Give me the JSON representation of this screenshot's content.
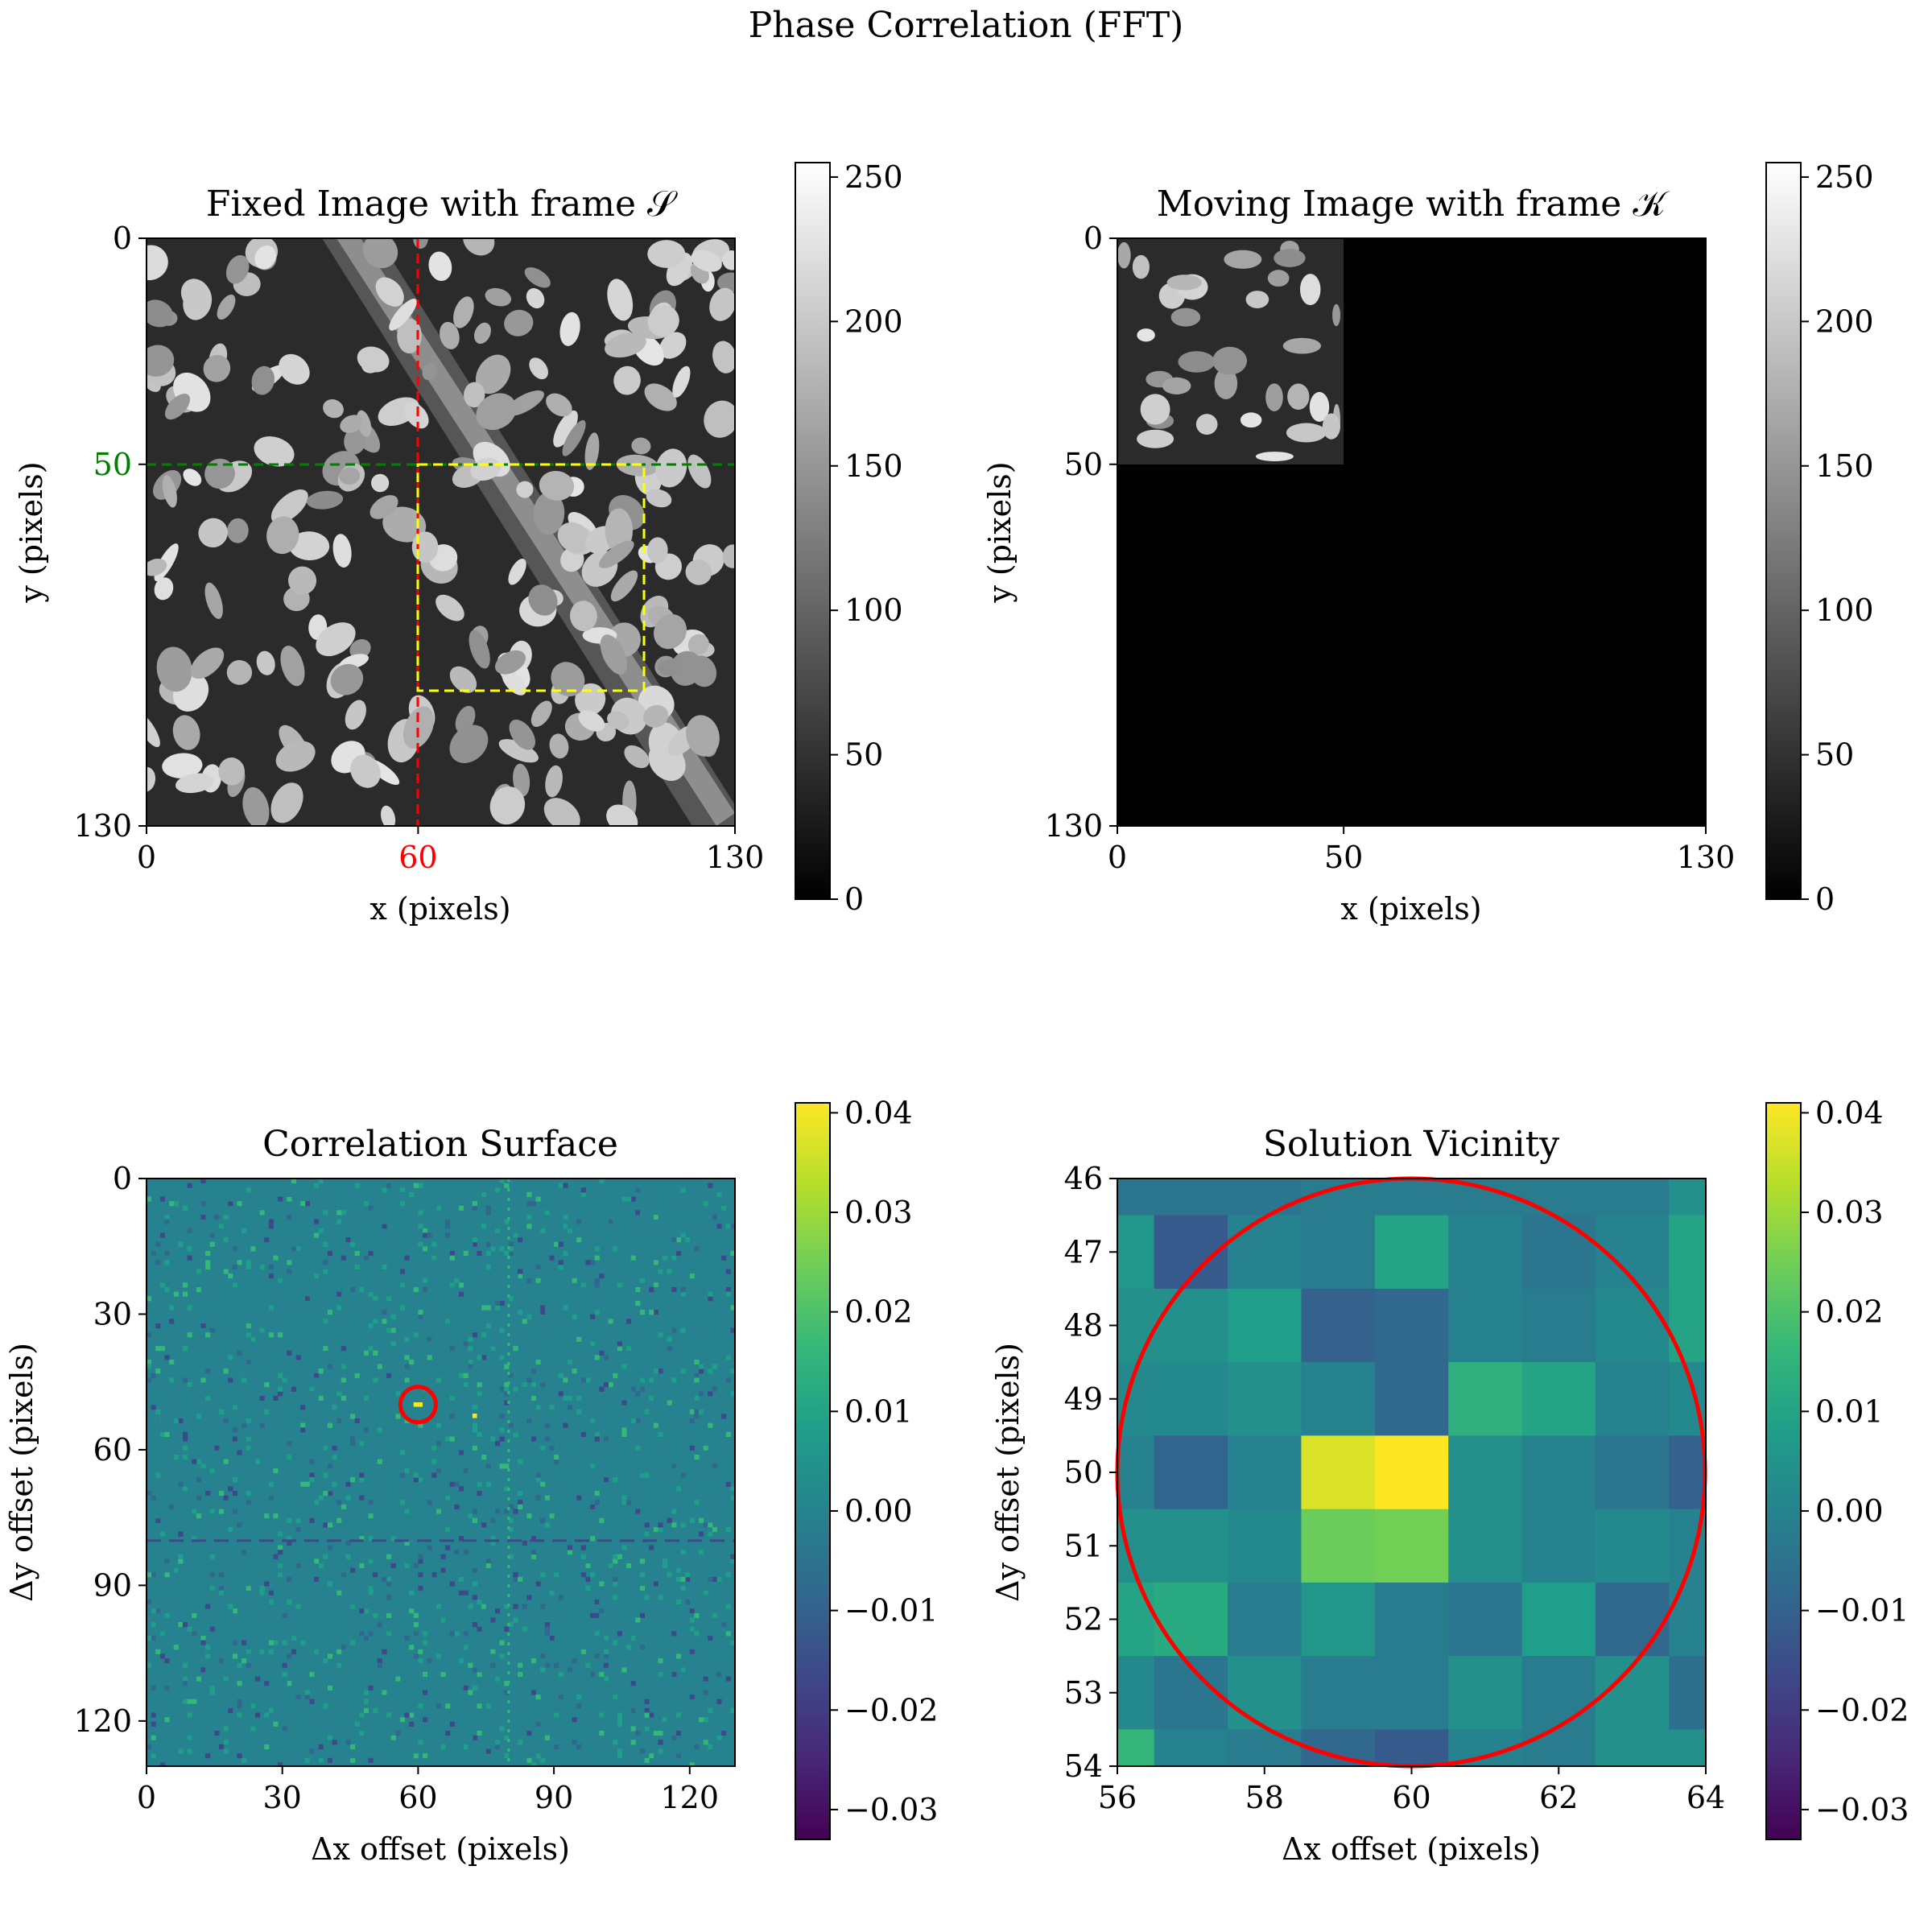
{
  "figure": {
    "suptitle": "Phase Correlation (FFT)"
  },
  "colors": {
    "frame": "#000000",
    "red": "#ff0000",
    "green": "#008000",
    "yellow": "#ffff00",
    "viridis": [
      "#440154",
      "#482878",
      "#3e4989",
      "#31688e",
      "#26828e",
      "#1f9e89",
      "#35b779",
      "#6ece58",
      "#b5de2b",
      "#fde725"
    ]
  },
  "chart_data": [
    {
      "type": "heatmap",
      "panel": "fixed",
      "title": "Fixed Image with frame 𝒮",
      "xlabel": "x (pixels)",
      "ylabel": "y (pixels)",
      "xlim": [
        0,
        130
      ],
      "ylim": [
        130,
        0
      ],
      "xticks": [
        "0",
        "60",
        "130"
      ],
      "yticks": [
        "0",
        "50",
        "130"
      ],
      "highlighted_ticks": {
        "x": "60",
        "y": "50"
      },
      "colormap": "gray",
      "colorbar": {
        "range": [
          0,
          255
        ],
        "ticks": [
          "0",
          "50",
          "100",
          "150",
          "200",
          "250"
        ]
      },
      "annotations": [
        {
          "type": "vline",
          "x": 60,
          "color": "red",
          "style": "dashed"
        },
        {
          "type": "hline",
          "y": 50,
          "color": "green",
          "style": "dashed"
        },
        {
          "type": "rectangle",
          "x": [
            60,
            110
          ],
          "y": [
            50,
            100
          ],
          "color": "yellow",
          "style": "dashed"
        }
      ]
    },
    {
      "type": "heatmap",
      "panel": "moving",
      "title": "Moving Image with frame 𝒦",
      "xlabel": "x (pixels)",
      "ylabel": "y (pixels)",
      "xlim": [
        0,
        130
      ],
      "ylim": [
        130,
        0
      ],
      "xticks": [
        "0",
        "50",
        "130"
      ],
      "yticks": [
        "0",
        "50",
        "130"
      ],
      "colormap": "gray",
      "colorbar": {
        "range": [
          0,
          255
        ],
        "ticks": [
          "0",
          "50",
          "100",
          "150",
          "200",
          "250"
        ]
      },
      "content": "image patch in region x 0–50, y 0–50; remainder zero (black)"
    },
    {
      "type": "heatmap",
      "panel": "correlation",
      "title": "Correlation Surface",
      "xlabel": "Δx offset (pixels)",
      "ylabel": "Δy offset (pixels)",
      "xlim": [
        0,
        130
      ],
      "ylim": [
        130,
        0
      ],
      "xticks": [
        "0",
        "30",
        "60",
        "90",
        "120"
      ],
      "yticks": [
        "0",
        "30",
        "60",
        "90",
        "120"
      ],
      "colormap": "viridis",
      "colorbar": {
        "range": [
          -0.033,
          0.041
        ],
        "ticks": [
          "−0.03",
          "−0.02",
          "−0.01",
          "0.00",
          "0.01",
          "0.02",
          "0.03",
          "0.04"
        ]
      },
      "peak": {
        "x": 60,
        "y": 50,
        "value": 0.041
      },
      "annotations": [
        {
          "type": "circle",
          "x": 60,
          "y": 50,
          "color": "red"
        }
      ]
    },
    {
      "type": "heatmap",
      "panel": "vicinity",
      "title": "Solution Vicinity",
      "xlabel": "Δx offset (pixels)",
      "ylabel": "Δy offset (pixels)",
      "xlim": [
        56,
        64
      ],
      "ylim": [
        54,
        46
      ],
      "xticks": [
        "56",
        "58",
        "60",
        "62",
        "64"
      ],
      "yticks": [
        "46",
        "47",
        "48",
        "49",
        "50",
        "51",
        "52",
        "53",
        "54"
      ],
      "colormap": "viridis",
      "colorbar": {
        "range": [
          -0.033,
          0.041
        ],
        "ticks": [
          "−0.03",
          "−0.02",
          "−0.01",
          "0.00",
          "0.01",
          "0.02",
          "0.03",
          "0.04"
        ]
      },
      "x_centers": [
        56,
        57,
        58,
        59,
        60,
        61,
        62,
        63,
        64
      ],
      "y_centers": [
        46,
        47,
        48,
        49,
        50,
        51,
        52,
        53,
        54
      ],
      "values": [
        [
          -0.004,
          -0.004,
          -0.004,
          -0.002,
          -0.002,
          -0.002,
          -0.002,
          -0.002,
          0.004
        ],
        [
          0.006,
          -0.012,
          0.0,
          -0.002,
          0.01,
          0.0,
          -0.004,
          0.0,
          0.01
        ],
        [
          0.004,
          0.004,
          0.008,
          -0.01,
          -0.008,
          0.0,
          -0.002,
          0.002,
          0.01
        ],
        [
          0.002,
          0.002,
          0.004,
          0.0,
          -0.008,
          0.014,
          0.01,
          0.0,
          0.002
        ],
        [
          0.0,
          -0.009,
          0.0,
          0.037,
          0.041,
          0.004,
          0.0,
          -0.004,
          -0.01
        ],
        [
          0.004,
          0.004,
          0.002,
          0.024,
          0.025,
          0.004,
          0.0,
          0.002,
          0.0
        ],
        [
          0.01,
          0.012,
          -0.002,
          0.006,
          -0.002,
          -0.004,
          0.008,
          -0.008,
          0.0
        ],
        [
          0.002,
          -0.004,
          0.004,
          -0.002,
          -0.002,
          0.004,
          -0.002,
          0.004,
          -0.006
        ],
        [
          0.016,
          0.0,
          -0.002,
          -0.008,
          -0.012,
          0.0,
          -0.002,
          0.004,
          0.004
        ]
      ],
      "annotations": [
        {
          "type": "circle",
          "x": 60,
          "y": 50,
          "radius": 4,
          "color": "red"
        }
      ]
    }
  ]
}
